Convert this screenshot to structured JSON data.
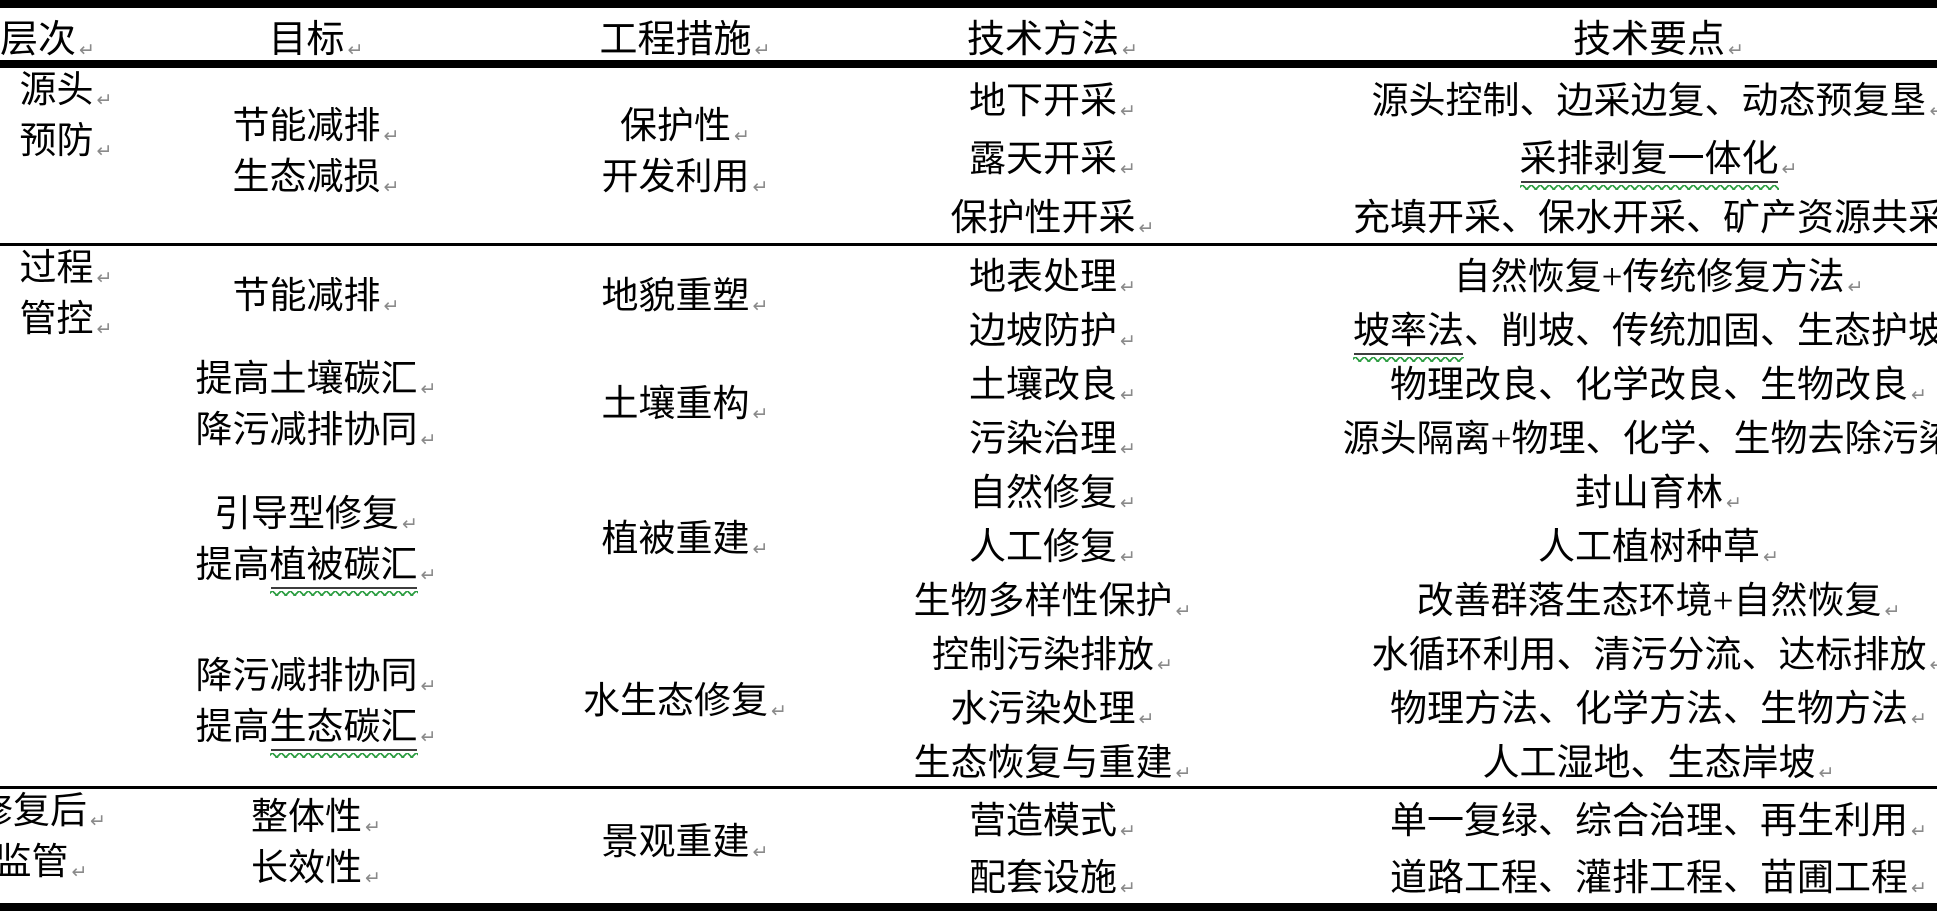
{
  "marks": {
    "line_end": "↵"
  },
  "colors": {
    "text": "#000000",
    "background": "#ffffff",
    "rule": "#000000",
    "squiggle_green": "#2f9e44",
    "term_underline": "#3d3d3d",
    "paragraph_mark": "#8a8a8a"
  },
  "table": {
    "headers": [
      {
        "key": "level",
        "label": "层次"
      },
      {
        "key": "goal",
        "label": "目标"
      },
      {
        "key": "measures",
        "label": "工程措施"
      },
      {
        "key": "methods",
        "label": "技术方法"
      },
      {
        "key": "points",
        "label": "技术要点"
      }
    ],
    "sections": [
      {
        "id": "source-prevention",
        "level": [
          "源头",
          "预防"
        ],
        "groups": [
          {
            "goal": [
              "节能减排",
              "生态减损"
            ],
            "measure": [
              "保护性",
              "开发利用"
            ],
            "rows": [
              {
                "method": "地下开采",
                "points": "源头控制、边采边复、动态预复垦"
              },
              {
                "method": "露天开采",
                "points": {
                  "segments": [
                    {
                      "text": "采排剥复一体化",
                      "underline": true
                    }
                  ]
                }
              },
              {
                "method": "保护性开采",
                "points": "充填开采、保水开采、矿产资源共采"
              }
            ]
          }
        ]
      },
      {
        "id": "process-control",
        "level": [
          "过程",
          "管控"
        ],
        "groups": [
          {
            "goal": [
              "节能减排"
            ],
            "measure": [
              "地貌重塑"
            ],
            "rows": [
              {
                "method": "地表处理",
                "points": "自然恢复+传统修复方法"
              },
              {
                "method": "边坡防护",
                "points": {
                  "segments": [
                    {
                      "text": "坡率法",
                      "underline": true
                    },
                    {
                      "text": "、削坡、传统加固、生态护坡"
                    }
                  ]
                }
              }
            ]
          },
          {
            "goal": [
              "提高土壤碳汇",
              "降污减排协同"
            ],
            "measure": [
              "土壤重构"
            ],
            "rows": [
              {
                "method": "土壤改良",
                "points": "物理改良、化学改良、生物改良"
              },
              {
                "method": "污染治理",
                "points": "源头隔离+物理、化学、生物去除污染"
              }
            ]
          },
          {
            "goal": [
              "引导型修复",
              {
                "segments": [
                  {
                    "text": "提高"
                  },
                  {
                    "text": "植被碳汇",
                    "underline": true
                  }
                ]
              }
            ],
            "measure": [
              "植被重建"
            ],
            "rows": [
              {
                "method": "自然修复",
                "points": "封山育林"
              },
              {
                "method": "人工修复",
                "points": "人工植树种草"
              },
              {
                "method": "生物多样性保护",
                "points": "改善群落生态环境+自然恢复"
              }
            ]
          },
          {
            "goal": [
              "降污减排协同",
              {
                "segments": [
                  {
                    "text": "提高"
                  },
                  {
                    "text": "生态碳汇",
                    "underline": true
                  }
                ]
              }
            ],
            "measure": [
              "水生态修复"
            ],
            "rows": [
              {
                "method": "控制污染排放",
                "points": "水循环利用、清污分流、达标排放"
              },
              {
                "method": "水污染处理",
                "points": "物理方法、化学方法、生物方法"
              },
              {
                "method": "生态恢复与重建",
                "points": "人工湿地、生态岸坡"
              }
            ]
          }
        ]
      },
      {
        "id": "post-restoration-supervision",
        "level": [
          "修复后",
          "监管"
        ],
        "groups": [
          {
            "goal": [
              "整体性",
              "长效性"
            ],
            "measure": [
              "景观重建"
            ],
            "rows": [
              {
                "method": "营造模式",
                "points": "单一复绿、综合治理、再生利用"
              },
              {
                "method": "配套设施",
                "points": "道路工程、灌排工程、苗圃工程"
              }
            ]
          }
        ]
      }
    ]
  }
}
